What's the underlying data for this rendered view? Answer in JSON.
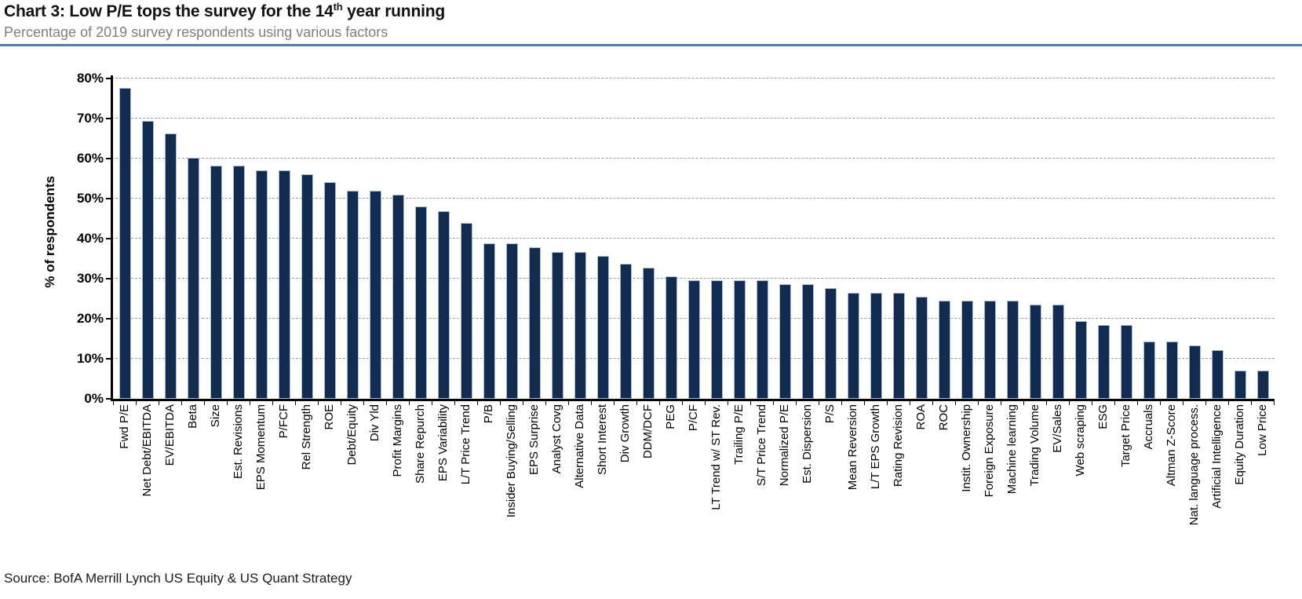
{
  "header": {
    "title_prefix": "Chart 3: Low P/E tops the survey for the 14",
    "title_superscript": "th",
    "title_suffix": " year running",
    "subtitle": "Percentage of 2019 survey respondents using various factors"
  },
  "footer": {
    "source": "Source: BofA Merrill Lynch US Equity & US Quant Strategy"
  },
  "colors": {
    "bar_fill": "#122b50",
    "bar_edge": "#a7bacf",
    "header_rule": "#567da4",
    "subtitle_text": "#7f7f7f",
    "gridline": "#9a9a9a",
    "axis": "#000000"
  },
  "chart_data": {
    "type": "bar",
    "title": "Chart 3: Low P/E tops the survey for the 14th year running",
    "subtitle": "Percentage of 2019 survey respondents using various factors",
    "xlabel": "",
    "ylabel": "% of respondents",
    "ylim": [
      0,
      80
    ],
    "ytick_step": 10,
    "ytick_labels": [
      "0%",
      "10%",
      "20%",
      "30%",
      "40%",
      "50%",
      "60%",
      "70%",
      "80%"
    ],
    "grid": "horizontal dashed, legend none",
    "categories": [
      "Fwd P/E",
      "Net Debt/EBITDA",
      "EV/EBITDA",
      "Beta",
      "Size",
      "Est. Revisions",
      "EPS Momentum",
      "P/FCF",
      "Rel Strength",
      "ROE",
      "Debt/Equity",
      "Div Yld",
      "Profit Margins",
      "Share Repurch",
      "EPS Variability",
      "L/T Price Trend",
      "P/B",
      "Insider Buying/Selling",
      "EPS Surprise",
      "Analyst Covg",
      "Alternative Data",
      "Short Interest",
      "Div Growth",
      "DDM/DCF",
      "PEG",
      "P/CF",
      "LT Trend w/ ST Rev.",
      "Trailing P/E",
      "S/T Price Trend",
      "Normalized P/E",
      "Est. Dispersion",
      "P/S",
      "Mean Reversion",
      "L/T EPS Growth",
      "Rating Revision",
      "ROA",
      "ROC",
      "Instit. Ownership",
      "Foreign Exposure",
      "Machine learning",
      "Trading Volume",
      "EV/Sales",
      "Web scraping",
      "ESG",
      "Target Price",
      "Accruals",
      "Altman Z-Score",
      "Nat. language process.",
      "Artificial Intelligence",
      "Equity Duration",
      "Low Price"
    ],
    "values": [
      77.6,
      69.4,
      66.3,
      60.2,
      58.2,
      58.2,
      57.1,
      57.1,
      56.1,
      54.1,
      52.0,
      52.0,
      51.0,
      48.0,
      46.9,
      43.9,
      38.8,
      38.8,
      37.8,
      36.7,
      36.7,
      35.7,
      33.7,
      32.7,
      30.6,
      29.6,
      29.6,
      29.6,
      29.6,
      28.6,
      28.6,
      27.6,
      26.5,
      26.5,
      26.5,
      25.5,
      24.5,
      24.5,
      24.5,
      24.5,
      23.5,
      23.5,
      19.4,
      18.4,
      18.4,
      14.3,
      14.3,
      13.3,
      12.2,
      7.1,
      7.1
    ]
  }
}
